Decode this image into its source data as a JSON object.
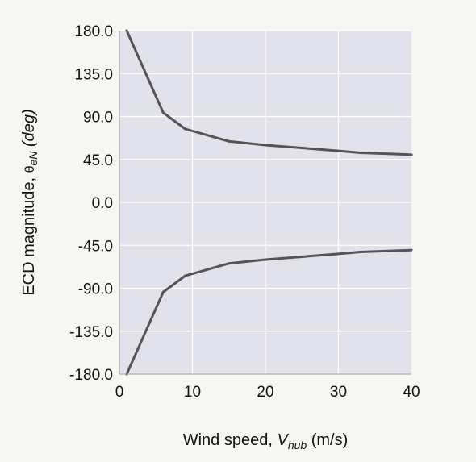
{
  "chart_data": {
    "type": "line",
    "xlabel": {
      "prefix": "Wind speed, ",
      "symbol": "V",
      "subscript": "hub",
      "suffix": " (m/s)"
    },
    "ylabel": {
      "prefix": "ECD magnitude, ",
      "symbol": "θ",
      "subscript": "eN",
      "suffix": " (deg)"
    },
    "xlim": [
      0,
      40
    ],
    "ylim": [
      -180,
      180
    ],
    "xticks": [
      "0",
      "10",
      "20",
      "30",
      "40"
    ],
    "yticks": [
      "180.0",
      "135.0",
      "90.0",
      "45.0",
      "0.0",
      "-45.0",
      "-90.0",
      "-135.0",
      "-180.0"
    ],
    "grid": true,
    "series": [
      {
        "x": [
          1,
          6,
          9,
          15,
          20,
          25,
          30,
          33,
          40
        ],
        "y": [
          180,
          94,
          77,
          64,
          60,
          57,
          54,
          52,
          50
        ]
      },
      {
        "x": [
          1,
          6,
          9,
          15,
          20,
          25,
          30,
          33,
          40
        ],
        "y": [
          -180,
          -94,
          -77,
          -64,
          -60,
          -57,
          -54,
          -52,
          -50
        ]
      }
    ],
    "colors": {
      "plot_background": "#e2e2ec",
      "grid": "#ffffff",
      "line": "#545454",
      "text": "#111111"
    }
  }
}
